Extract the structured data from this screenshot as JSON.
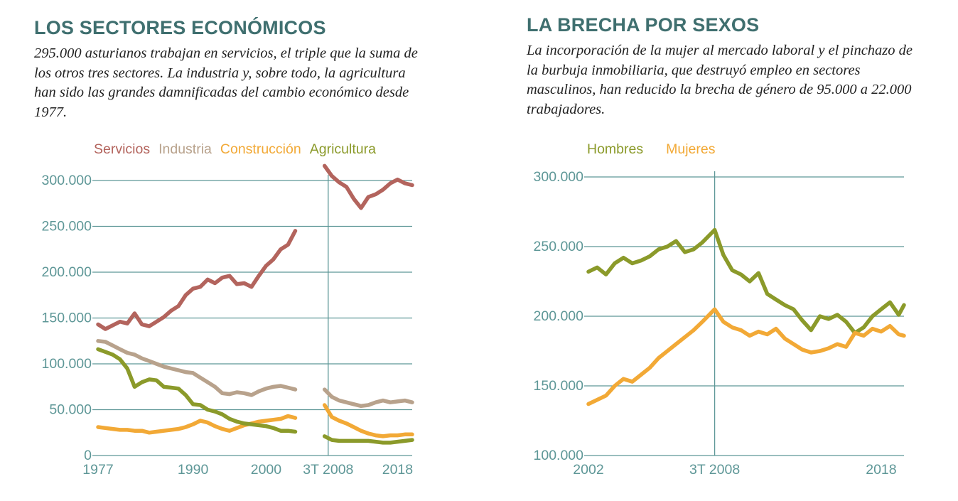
{
  "colors": {
    "title": "#3f6f6f",
    "axis": "#5e9797",
    "grid": "#5e9797",
    "servicios": "#b3645d",
    "industria": "#b8a28c",
    "construccion": "#f2a936",
    "agricultura": "#8b9a2a",
    "hombres": "#8b9a2a",
    "mujeres": "#f2a936"
  },
  "left_panel": {
    "title": "LOS SECTORES ECONÓMICOS",
    "description": "295.000 asturianos trabajan en servicios, el triple que la suma de los otros tres sectores. La industria y, sobre todo, la agricultura han sido las grandes damnificadas del cambio económico desde 1977."
  },
  "right_panel": {
    "title": "LA BRECHA POR SEXOS",
    "description": "La incorporación de la mujer al mercado laboral y el pinchazo de la burbuja inmobiliaria, que destruyó empleo en sectores masculinos, han reducido la brecha de género de 95.000 a 22.000 trabajadores."
  },
  "chart_data": [
    {
      "type": "line",
      "title": "",
      "xlabel": "",
      "ylabel": "",
      "ylim": [
        0,
        300000
      ],
      "xlim": [
        1977,
        2020
      ],
      "y_ticks": [
        0,
        50000,
        100000,
        150000,
        200000,
        250000,
        300000
      ],
      "y_tick_labels": [
        "0",
        "50.000",
        "100.000",
        "150.000",
        "200.000",
        "250.000",
        "300.000"
      ],
      "x_tick_labels": [
        {
          "x": 1977,
          "label": "1977"
        },
        {
          "x": 1990,
          "label": "1990"
        },
        {
          "x": 2000,
          "label": "2000"
        },
        {
          "x": 2008.5,
          "label": "3T 2008"
        },
        {
          "x": 2018,
          "label": "2018"
        }
      ],
      "reference_line_x": 2008.5,
      "grid": true,
      "legend": "top",
      "series_break": [
        2004.5,
        2007.7
      ],
      "series": [
        {
          "name": "Servicios",
          "color_key": "servicios",
          "x": [
            1977,
            1978,
            1979,
            1980,
            1981,
            1982,
            1983,
            1984,
            1985,
            1986,
            1987,
            1988,
            1989,
            1990,
            1991,
            1992,
            1993,
            1994,
            1995,
            1996,
            1997,
            1998,
            1999,
            2000,
            2001,
            2002,
            2003,
            2004,
            2008,
            2009,
            2010,
            2011,
            2012,
            2013,
            2014,
            2015,
            2016,
            2017,
            2018,
            2019,
            2020
          ],
          "values": [
            143000,
            138000,
            142000,
            146000,
            144000,
            155000,
            143000,
            141000,
            146000,
            151000,
            158000,
            163000,
            175000,
            182000,
            184000,
            192000,
            188000,
            194000,
            196000,
            187000,
            188000,
            184000,
            196000,
            207000,
            214000,
            225000,
            230000,
            245000,
            316000,
            305000,
            298000,
            293000,
            280000,
            270000,
            282000,
            285000,
            290000,
            297000,
            301000,
            297000,
            295000
          ]
        },
        {
          "name": "Industria",
          "color_key": "industria",
          "x": [
            1977,
            1978,
            1979,
            1980,
            1981,
            1982,
            1983,
            1984,
            1985,
            1986,
            1987,
            1988,
            1989,
            1990,
            1991,
            1992,
            1993,
            1994,
            1995,
            1996,
            1997,
            1998,
            1999,
            2000,
            2001,
            2002,
            2003,
            2004,
            2008,
            2009,
            2010,
            2011,
            2012,
            2013,
            2014,
            2015,
            2016,
            2017,
            2018,
            2019,
            2020
          ],
          "values": [
            125000,
            124000,
            120000,
            116000,
            112000,
            110000,
            106000,
            103000,
            100000,
            97000,
            95000,
            93000,
            91000,
            90000,
            85000,
            80000,
            75000,
            68000,
            67000,
            69000,
            68000,
            66000,
            70000,
            73000,
            75000,
            76000,
            74000,
            72000,
            72000,
            64000,
            60000,
            58000,
            56000,
            54000,
            55000,
            58000,
            60000,
            58000,
            59000,
            60000,
            58000
          ]
        },
        {
          "name": "Construcción",
          "color_key": "construccion",
          "x": [
            1977,
            1978,
            1979,
            1980,
            1981,
            1982,
            1983,
            1984,
            1985,
            1986,
            1987,
            1988,
            1989,
            1990,
            1991,
            1992,
            1993,
            1994,
            1995,
            1996,
            1997,
            1998,
            1999,
            2000,
            2001,
            2002,
            2003,
            2004,
            2008,
            2009,
            2010,
            2011,
            2012,
            2013,
            2014,
            2015,
            2016,
            2017,
            2018,
            2019,
            2020
          ],
          "values": [
            31000,
            30000,
            29000,
            28000,
            28000,
            27000,
            27000,
            25000,
            26000,
            27000,
            28000,
            29000,
            31000,
            34000,
            38000,
            36000,
            32000,
            29000,
            27000,
            30000,
            33000,
            35000,
            37000,
            38000,
            39000,
            40000,
            43000,
            41000,
            55000,
            42000,
            38000,
            35000,
            31000,
            27000,
            24000,
            22000,
            21000,
            22000,
            22000,
            23000,
            23000
          ]
        },
        {
          "name": "Agricultura",
          "color_key": "agricultura",
          "x": [
            1977,
            1978,
            1979,
            1980,
            1981,
            1982,
            1983,
            1984,
            1985,
            1986,
            1987,
            1988,
            1989,
            1990,
            1991,
            1992,
            1993,
            1994,
            1995,
            1996,
            1997,
            1998,
            1999,
            2000,
            2001,
            2002,
            2003,
            2004,
            2008,
            2009,
            2010,
            2011,
            2012,
            2013,
            2014,
            2015,
            2016,
            2017,
            2018,
            2019,
            2020
          ],
          "values": [
            116000,
            113000,
            110000,
            105000,
            95000,
            75000,
            80000,
            83000,
            82000,
            75000,
            74000,
            73000,
            66000,
            56000,
            55000,
            50000,
            48000,
            45000,
            40000,
            37000,
            35000,
            34000,
            33000,
            32000,
            30000,
            27000,
            27000,
            26000,
            21000,
            17000,
            16000,
            16000,
            16000,
            16000,
            16000,
            15000,
            14000,
            14000,
            15000,
            16000,
            17000
          ]
        }
      ]
    },
    {
      "type": "line",
      "title": "",
      "xlabel": "",
      "ylabel": "",
      "ylim": [
        100000,
        300000
      ],
      "xlim": [
        2002,
        2020
      ],
      "y_ticks": [
        100000,
        150000,
        200000,
        250000,
        300000
      ],
      "y_tick_labels": [
        "100.000",
        "150.000",
        "200.000",
        "250.000",
        "300.000"
      ],
      "x_tick_labels": [
        {
          "x": 2002,
          "label": "2002"
        },
        {
          "x": 2009.2,
          "label": "3T 2008"
        },
        {
          "x": 2018.7,
          "label": "2018"
        }
      ],
      "reference_line_x": 2009.2,
      "grid": true,
      "legend": "top",
      "series": [
        {
          "name": "Hombres",
          "color_key": "hombres",
          "x": [
            2002,
            2002.5,
            2003,
            2003.5,
            2004,
            2004.5,
            2005,
            2005.5,
            2006,
            2006.5,
            2007,
            2007.5,
            2008,
            2008.5,
            2009.2,
            2009.7,
            2010.2,
            2010.7,
            2011.2,
            2011.7,
            2012.2,
            2012.7,
            2013.2,
            2013.7,
            2014.2,
            2014.7,
            2015.2,
            2015.7,
            2016.2,
            2016.7,
            2017.2,
            2017.7,
            2018.2,
            2018.7,
            2019.2,
            2019.7,
            2020
          ],
          "values": [
            232000,
            235000,
            230000,
            238000,
            242000,
            238000,
            240000,
            243000,
            248000,
            250000,
            254000,
            246000,
            248000,
            253000,
            262000,
            244000,
            233000,
            230000,
            225000,
            231000,
            216000,
            212000,
            208000,
            205000,
            197000,
            190000,
            200000,
            198000,
            201000,
            196000,
            188000,
            192000,
            200000,
            205000,
            210000,
            201000,
            208000
          ]
        },
        {
          "name": "Mujeres",
          "color_key": "mujeres",
          "x": [
            2002,
            2002.5,
            2003,
            2003.5,
            2004,
            2004.5,
            2005,
            2005.5,
            2006,
            2006.5,
            2007,
            2007.5,
            2008,
            2008.5,
            2009.2,
            2009.7,
            2010.2,
            2010.7,
            2011.2,
            2011.7,
            2012.2,
            2012.7,
            2013.2,
            2013.7,
            2014.2,
            2014.7,
            2015.2,
            2015.7,
            2016.2,
            2016.7,
            2017.2,
            2017.7,
            2018.2,
            2018.7,
            2019.2,
            2019.7,
            2020
          ],
          "values": [
            137000,
            140000,
            143000,
            150000,
            155000,
            153000,
            158000,
            163000,
            170000,
            175000,
            180000,
            185000,
            190000,
            196000,
            205000,
            196000,
            192000,
            190000,
            186000,
            189000,
            187000,
            191000,
            184000,
            180000,
            176000,
            174000,
            175000,
            177000,
            180000,
            178000,
            188000,
            186000,
            191000,
            189000,
            193000,
            187000,
            186000
          ]
        }
      ]
    }
  ]
}
